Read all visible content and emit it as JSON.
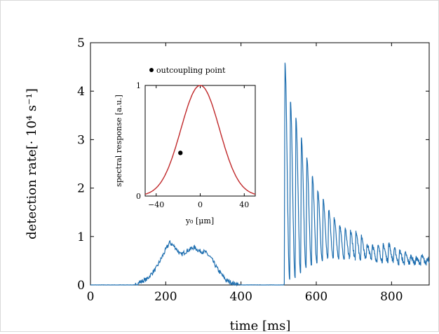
{
  "chart_data": [
    {
      "type": "line",
      "xlabel": "time [ms]",
      "ylabel": "detection rate[· 10⁴ s⁻¹]",
      "xlim": [
        0,
        900
      ],
      "ylim": [
        0,
        5
      ],
      "xticks": [
        "0",
        "200",
        "400",
        "600",
        "800"
      ],
      "yticks": [
        "0",
        "1",
        "2",
        "3",
        "4",
        "5"
      ],
      "series": [
        {
          "color": "#1f77b4",
          "segments": [
            {
              "x": [
                0,
                120
              ],
              "y": [
                0.0,
                0.0
              ]
            },
            {
              "x": [
                120,
                150,
                175,
                195,
                210,
                225,
                240,
                255,
                275,
                290,
                305,
                320,
                340,
                360,
                380,
                400
              ],
              "y": [
                0.02,
                0.12,
                0.35,
                0.65,
                0.88,
                0.78,
                0.62,
                0.7,
                0.78,
                0.7,
                0.68,
                0.56,
                0.3,
                0.1,
                0.03,
                0.0
              ]
            },
            {
              "x": [
                400,
                515
              ],
              "y": [
                0.0,
                0.0
              ]
            }
          ],
          "oscillation": {
            "start": 515,
            "period": 14.5,
            "peaks": [
              4.58,
              3.78,
              3.45,
              3.05,
              2.62,
              2.25,
              1.95,
              1.75,
              1.55,
              1.38,
              1.23,
              1.15,
              1.1,
              1.1,
              1.0,
              0.85,
              0.8,
              0.8,
              0.82,
              0.85,
              0.75,
              0.7,
              0.65,
              0.6,
              0.55,
              0.6,
              0.55
            ],
            "troughs": [
              0.05,
              0.1,
              0.15,
              0.25,
              0.35,
              0.4,
              0.45,
              0.5,
              0.55,
              0.55,
              0.55,
              0.55,
              0.55,
              0.55,
              0.55,
              0.55,
              0.55,
              0.5,
              0.5,
              0.5,
              0.5,
              0.45,
              0.45,
              0.45,
              0.45,
              0.45,
              0.45
            ]
          }
        }
      ]
    },
    {
      "type": "line",
      "xlabel": "y₀ [μm]",
      "ylabel": "spectral response [a.u.]",
      "xlim": [
        -50,
        50
      ],
      "ylim": [
        0,
        1
      ],
      "xticks": [
        "−40",
        "0",
        "40"
      ],
      "yticks": [
        "0",
        "1"
      ],
      "legend": {
        "label": "outcoupling point",
        "position": "top-left-outside"
      },
      "series": [
        {
          "color": "#c0282a",
          "shape": "gaussian",
          "center": 0,
          "sigma": 17.5,
          "amplitude": 1
        }
      ],
      "points": [
        {
          "x": -18,
          "y": 0.39,
          "color": "#000000"
        }
      ]
    }
  ]
}
